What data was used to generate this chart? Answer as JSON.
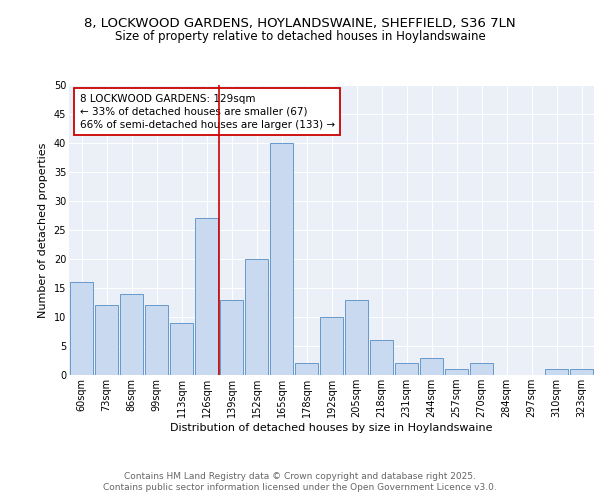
{
  "title1": "8, LOCKWOOD GARDENS, HOYLANDSWAINE, SHEFFIELD, S36 7LN",
  "title2": "Size of property relative to detached houses in Hoylandswaine",
  "xlabel": "Distribution of detached houses by size in Hoylandswaine",
  "ylabel": "Number of detached properties",
  "categories": [
    "60sqm",
    "73sqm",
    "86sqm",
    "99sqm",
    "113sqm",
    "126sqm",
    "139sqm",
    "152sqm",
    "165sqm",
    "178sqm",
    "192sqm",
    "205sqm",
    "218sqm",
    "231sqm",
    "244sqm",
    "257sqm",
    "270sqm",
    "284sqm",
    "297sqm",
    "310sqm",
    "323sqm"
  ],
  "values": [
    16,
    12,
    14,
    12,
    9,
    27,
    13,
    20,
    40,
    2,
    10,
    13,
    6,
    2,
    3,
    1,
    2,
    0,
    0,
    1,
    1
  ],
  "bar_color": "#c9d9f0",
  "bar_edge_color": "#6699cc",
  "highlight_index": 5,
  "highlight_line_color": "#cc0000",
  "annotation_text": "8 LOCKWOOD GARDENS: 129sqm\n← 33% of detached houses are smaller (67)\n66% of semi-detached houses are larger (133) →",
  "annotation_box_color": "#ffffff",
  "annotation_box_edge": "#cc0000",
  "ylim": [
    0,
    50
  ],
  "yticks": [
    0,
    5,
    10,
    15,
    20,
    25,
    30,
    35,
    40,
    45,
    50
  ],
  "background_color": "#eaeff8",
  "footer_text": "Contains HM Land Registry data © Crown copyright and database right 2025.\nContains public sector information licensed under the Open Government Licence v3.0.",
  "title_fontsize": 9.5,
  "subtitle_fontsize": 8.5,
  "axis_label_fontsize": 8,
  "tick_fontsize": 7,
  "annotation_fontsize": 7.5,
  "footer_fontsize": 6.5
}
